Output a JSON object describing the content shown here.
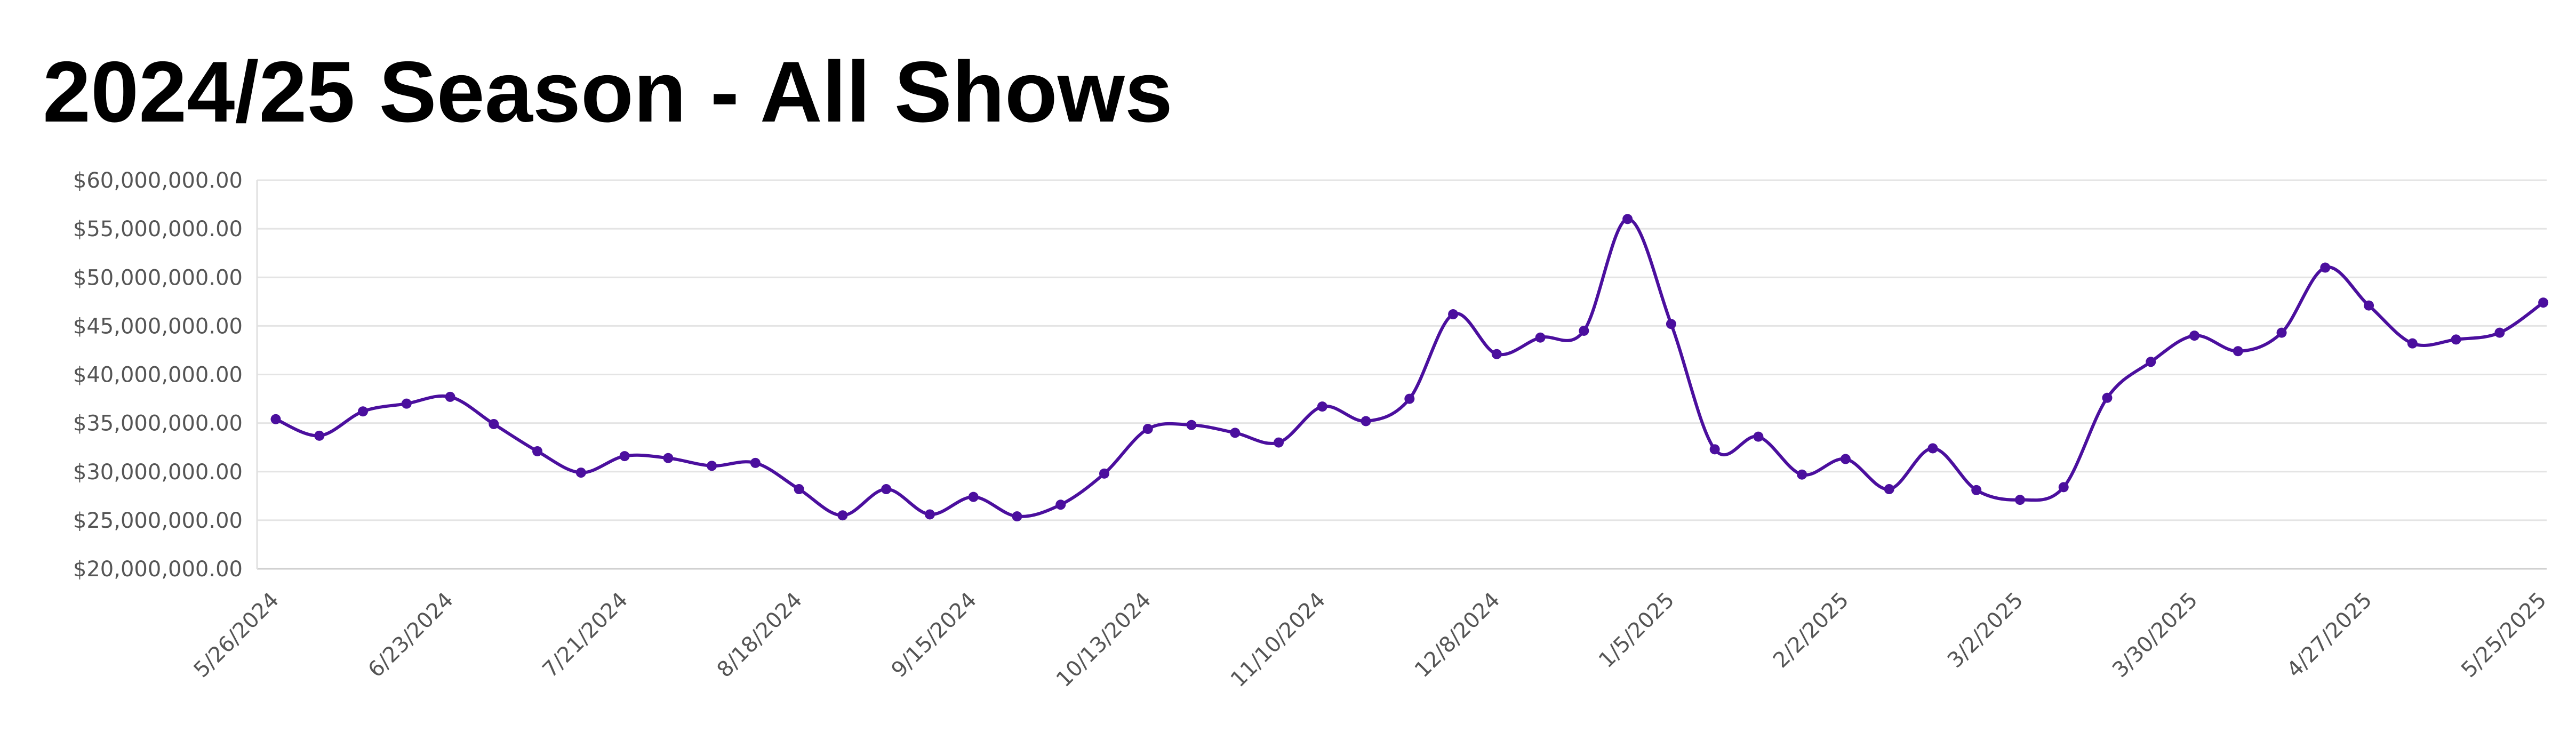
{
  "chart_data": {
    "type": "line",
    "title": "2024/25 Season - All Shows",
    "xlabel": "",
    "ylabel": "",
    "ylim": [
      20000000,
      60000000
    ],
    "yticks": [
      20000000,
      25000000,
      30000000,
      35000000,
      40000000,
      45000000,
      50000000,
      55000000,
      60000000
    ],
    "ytick_labels": [
      "$20,000,000.00",
      "$25,000,000.00",
      "$30,000,000.00",
      "$35,000,000.00",
      "$40,000,000.00",
      "$45,000,000.00",
      "$50,000,000.00",
      "$55,000,000.00",
      "$60,000,000.00"
    ],
    "x": [
      "5/26/2024",
      "6/2/2024",
      "6/9/2024",
      "6/16/2024",
      "6/23/2024",
      "6/30/2024",
      "7/7/2024",
      "7/14/2024",
      "7/21/2024",
      "7/28/2024",
      "8/4/2024",
      "8/11/2024",
      "8/18/2024",
      "8/25/2024",
      "9/1/2024",
      "9/8/2024",
      "9/15/2024",
      "9/22/2024",
      "9/29/2024",
      "10/6/2024",
      "10/13/2024",
      "10/20/2024",
      "10/27/2024",
      "11/3/2024",
      "11/10/2024",
      "11/17/2024",
      "11/24/2024",
      "12/1/2024",
      "12/8/2024",
      "12/15/2024",
      "12/22/2024",
      "12/29/2024",
      "1/5/2025",
      "1/12/2025",
      "1/19/2025",
      "1/26/2025",
      "2/2/2025",
      "2/9/2025",
      "2/16/2025",
      "2/23/2025",
      "3/2/2025",
      "3/9/2025",
      "3/16/2025",
      "3/23/2025",
      "3/30/2025",
      "4/6/2025",
      "4/13/2025",
      "4/20/2025",
      "4/27/2025",
      "5/4/2025",
      "5/11/2025",
      "5/18/2025",
      "5/25/2025"
    ],
    "x_tick_labels": [
      "5/26/2024",
      "6/23/2024",
      "7/21/2024",
      "8/18/2024",
      "9/15/2024",
      "10/13/2024",
      "11/10/2024",
      "12/8/2024",
      "1/5/2025",
      "2/2/2025",
      "3/2/2025",
      "3/30/2025",
      "4/27/2025",
      "5/25/2025"
    ],
    "series": [
      {
        "values": [
          35400000,
          33700000,
          36200000,
          37000000,
          37700000,
          34900000,
          32100000,
          29900000,
          31600000,
          31400000,
          30600000,
          30900000,
          28200000,
          25500000,
          28200000,
          25600000,
          27400000,
          25400000,
          26600000,
          29800000,
          34400000,
          34800000,
          34000000,
          33000000,
          36700000,
          35200000,
          37500000,
          46200000,
          42100000,
          43800000,
          44500000,
          56000000,
          45200000,
          32300000,
          33600000,
          29700000,
          31300000,
          28200000,
          32400000,
          28100000,
          27100000,
          28400000,
          37600000,
          41300000,
          44000000,
          42400000,
          44300000,
          51000000,
          47100000,
          43200000,
          43600000,
          44300000,
          47400000
        ],
        "color": "#4b0f9e"
      }
    ],
    "grid": true,
    "line_smooth": true,
    "markers": true
  }
}
